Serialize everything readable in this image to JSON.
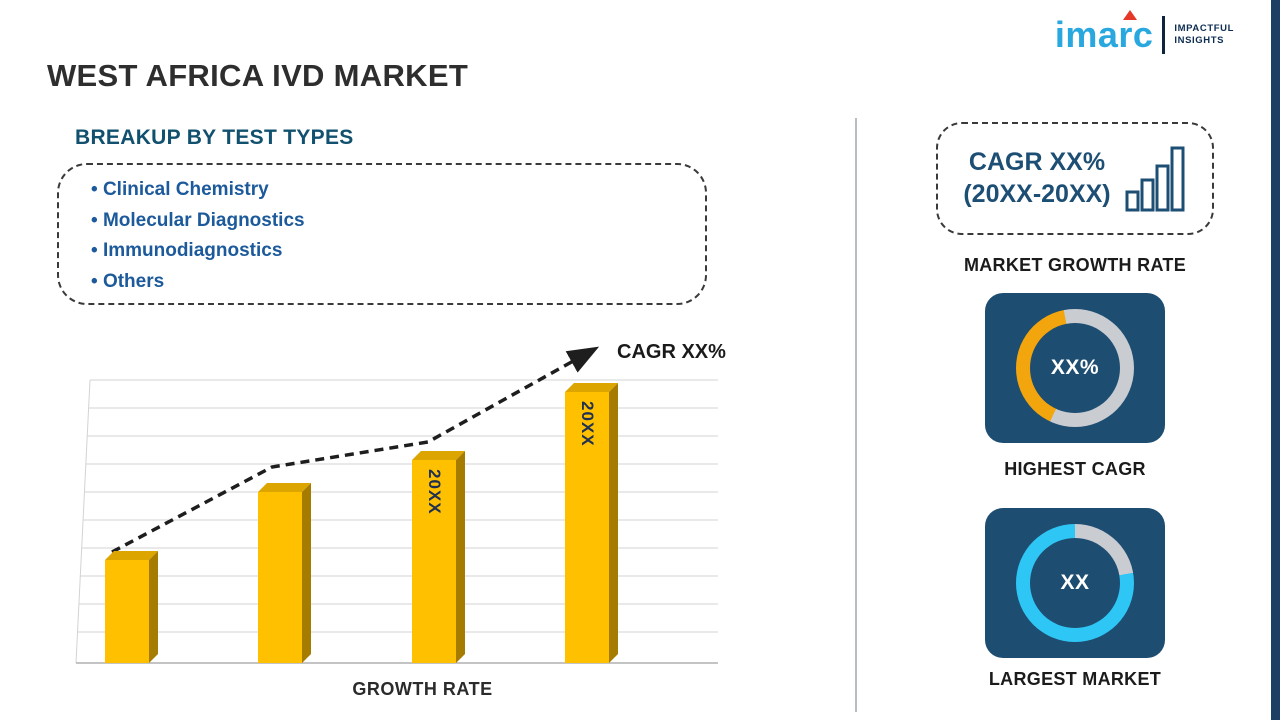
{
  "page": {
    "title": "WEST AFRICA IVD MARKET"
  },
  "logo": {
    "brand": "imarc",
    "tagline_line1": "IMPACTFUL",
    "tagline_line2": "INSIGHTS"
  },
  "breakup": {
    "heading": "BREAKUP BY TEST TYPES",
    "items": [
      "Clinical Chemistry",
      "Molecular Diagnostics",
      "Immunodiagnostics",
      "Others"
    ]
  },
  "chart_data": {
    "type": "bar",
    "caption": "GROWTH RATE",
    "categories": [
      "",
      "",
      "20XX",
      "20XX"
    ],
    "bar_labels": [
      "",
      "",
      "20XX",
      "20XX"
    ],
    "values": [
      38,
      63,
      75,
      100
    ],
    "bar_color": "#FFC000",
    "grid": true,
    "trend": {
      "label": "CAGR XX%",
      "style": "dashed-arrow"
    }
  },
  "right_panel": {
    "cagr_box": {
      "line1": "CAGR XX%",
      "line2": "(20XX-20XX)"
    },
    "market_growth_label": "MARKET GROWTH RATE",
    "highest_cagr": {
      "value": "XX%",
      "label": "HIGHEST CAGR",
      "arc_color": "#F2A50C",
      "arc_percent": 40
    },
    "largest_market": {
      "value": "XX",
      "label": "LARGEST MARKET",
      "arc_color": "#2EC6F5",
      "arc_percent": 78
    }
  },
  "colors": {
    "accent_navy": "#1E4D72",
    "bar_yellow": "#FFC000",
    "donut_gray": "#C9CCD1",
    "logo_cyan": "#29A8E0",
    "edge_strip": "#1C3F63"
  }
}
